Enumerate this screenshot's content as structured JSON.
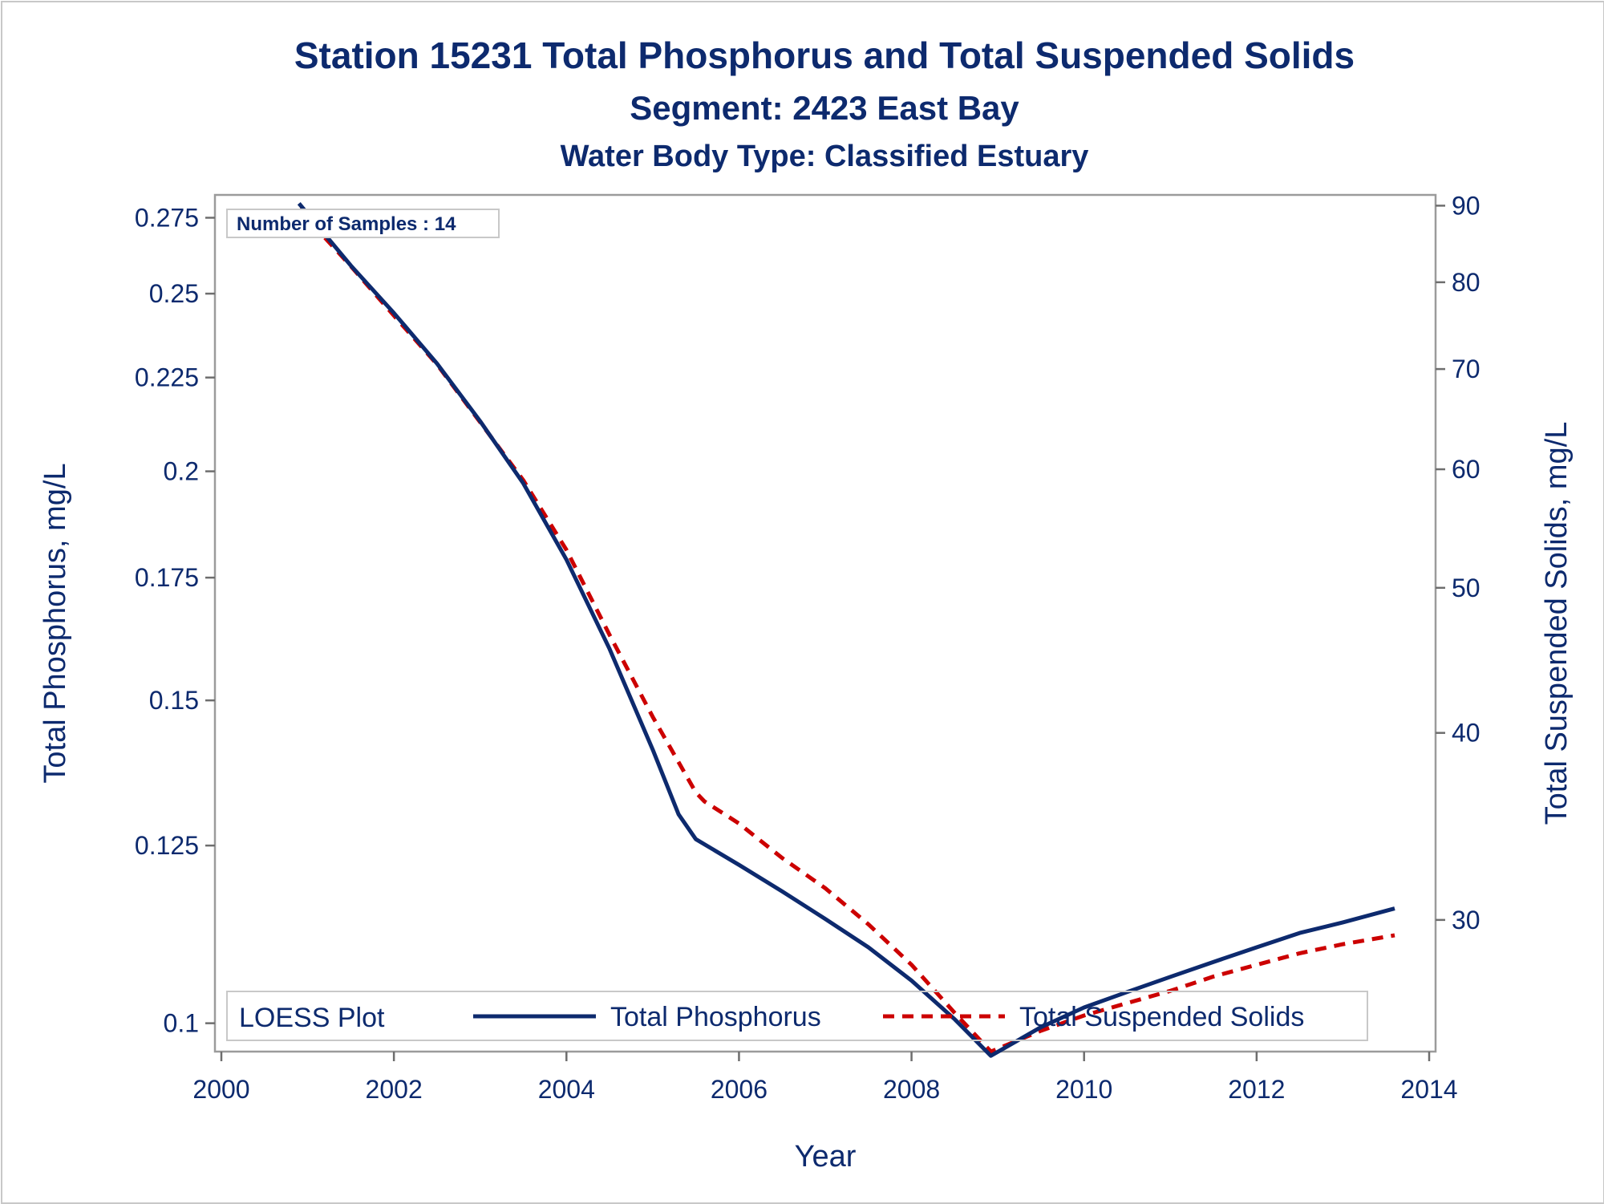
{
  "chart_data": {
    "type": "line",
    "title": "Station 15231  Total Phosphorus and Total Suspended Solids",
    "subtitle": "Segment: 2423  East Bay",
    "subtitle2": "Water Body Type: Classified Estuary",
    "annotation": "Number of Samples : 14",
    "xlabel": "Year",
    "ylabel_left": "Total Phosphorus, mg/L",
    "ylabel_right": "Total Suspended Solids, mg/L",
    "xlim": [
      2000,
      2014
    ],
    "ylim_left": [
      0.0965,
      0.283
    ],
    "ylim_right": [
      24.5,
      91.5
    ],
    "yscale": "log",
    "x_ticks": [
      "2000",
      "2002",
      "2004",
      "2006",
      "2008",
      "2010",
      "2012",
      "2014"
    ],
    "y_ticks_left": [
      "0.1",
      "0.125",
      "0.15",
      "0.175",
      "0.2",
      "0.225",
      "0.25",
      "0.275"
    ],
    "y_ticks_right": [
      "30",
      "40",
      "50",
      "60",
      "70",
      "80",
      "90"
    ],
    "grid": false,
    "legend": {
      "title": "LOESS Plot",
      "placement": "bottom-inside",
      "entries": [
        "Total Phosphorus",
        "Total Suspended Solids"
      ]
    },
    "series": [
      {
        "name": "Total Phosphorus",
        "axis": "left",
        "color": "#0d2a6e",
        "style": "solid",
        "x": [
          2000.9,
          2001.5,
          2002.0,
          2002.5,
          2003.0,
          2003.5,
          2004.0,
          2004.5,
          2005.0,
          2005.3,
          2005.5,
          2006.0,
          2006.5,
          2007.0,
          2007.5,
          2008.0,
          2008.5,
          2008.92,
          2009.5,
          2010.0,
          2010.5,
          2011.0,
          2011.5,
          2012.0,
          2012.5,
          2013.0,
          2013.6
        ],
        "y": [
          0.28,
          0.259,
          0.244,
          0.229,
          0.213,
          0.197,
          0.179,
          0.16,
          0.141,
          0.13,
          0.126,
          0.122,
          0.118,
          0.114,
          0.11,
          0.1055,
          0.1005,
          0.096,
          0.0995,
          0.102,
          0.104,
          0.106,
          0.108,
          0.11,
          0.112,
          0.1135,
          0.1155
        ]
      },
      {
        "name": "Total Suspended Solids",
        "axis": "right",
        "color": "#cc0000",
        "style": "dashed",
        "x": [
          2000.9,
          2001.5,
          2002.0,
          2002.5,
          2003.0,
          2003.5,
          2004.0,
          2004.5,
          2005.0,
          2005.5,
          2005.6,
          2006.0,
          2006.5,
          2007.0,
          2007.5,
          2008.0,
          2008.5,
          2008.92,
          2009.5,
          2010.0,
          2010.5,
          2011.0,
          2011.5,
          2012.0,
          2012.5,
          2013.0,
          2013.6
        ],
        "y": [
          89.5,
          82.0,
          76.0,
          70.5,
          64.5,
          59.0,
          53.0,
          46.5,
          41.0,
          36.5,
          36.0,
          34.8,
          33.0,
          31.5,
          29.8,
          28.0,
          26.0,
          24.5,
          25.3,
          25.9,
          26.4,
          26.9,
          27.5,
          28.0,
          28.5,
          28.9,
          29.3
        ]
      }
    ]
  }
}
